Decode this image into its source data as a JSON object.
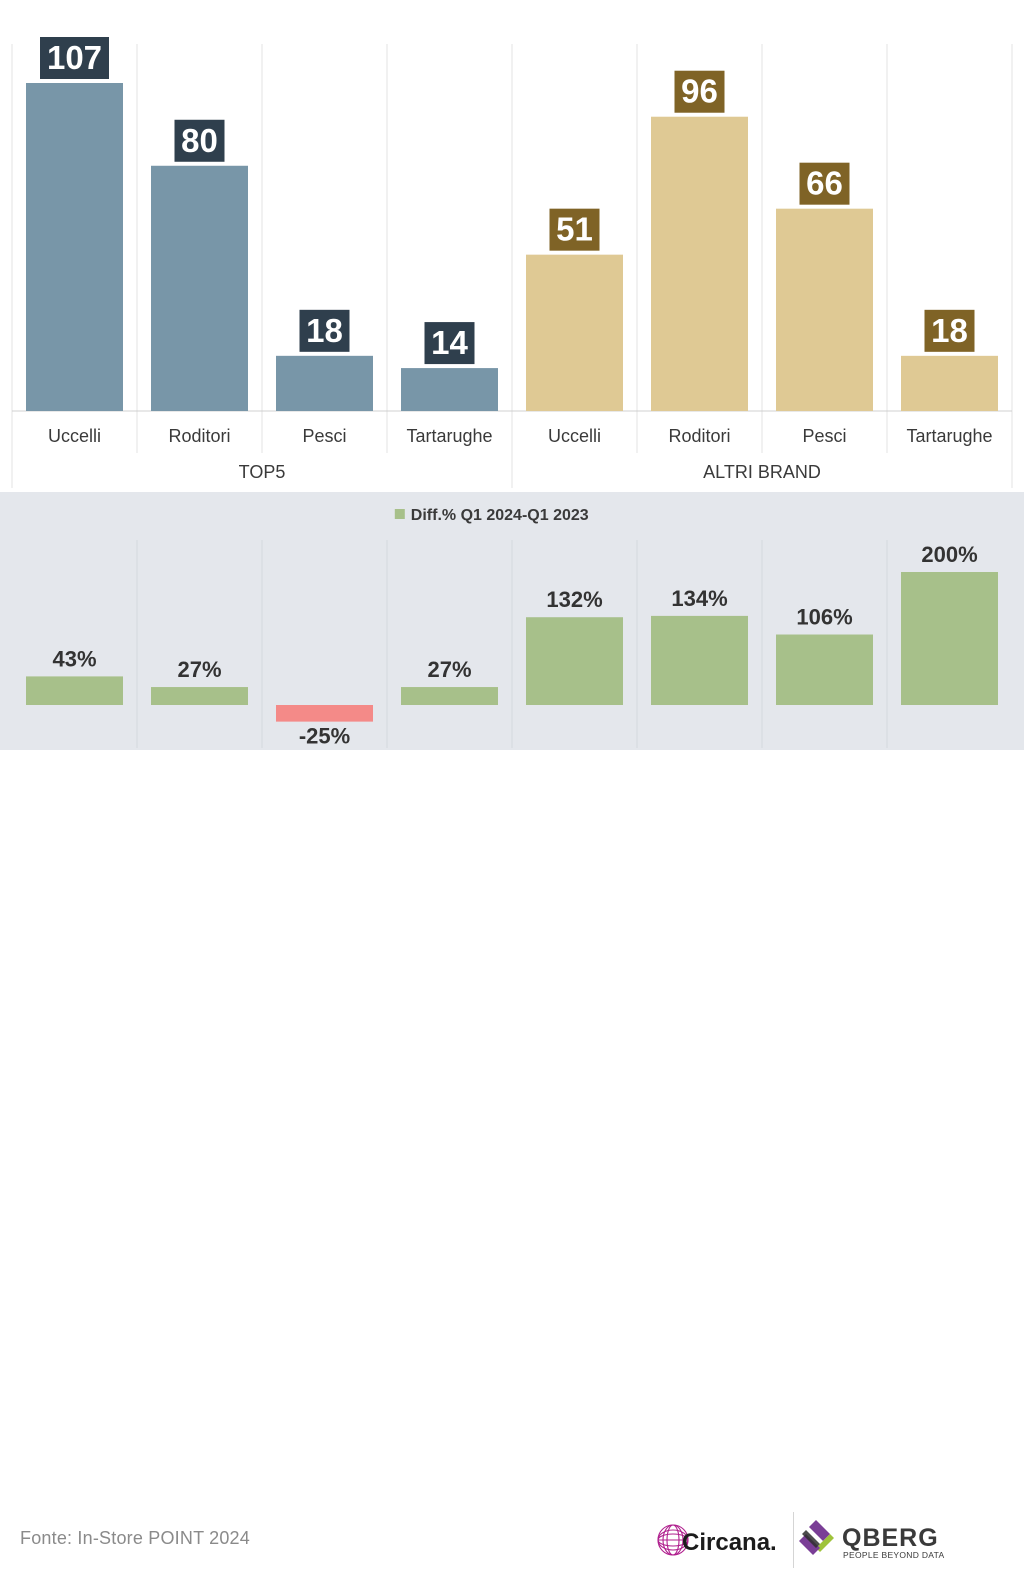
{
  "chart_data": [
    {
      "type": "bar",
      "categories": [
        "Uccelli",
        "Roditori",
        "Pesci",
        "Tartarughe",
        "Uccelli",
        "Roditori",
        "Pesci",
        "Tartarughe"
      ],
      "groups": [
        {
          "label": "TOP5",
          "indices": [
            0,
            1,
            2,
            3
          ],
          "bar_color": "#7896a8",
          "label_bg": "#2f3f4d"
        },
        {
          "label": "ALTRI BRAND",
          "indices": [
            4,
            5,
            6,
            7
          ],
          "bar_color": "#dfc994",
          "label_bg": "#7f6326"
        }
      ],
      "values": [
        107,
        80,
        18,
        14,
        51,
        96,
        66,
        18
      ],
      "ylim": [
        0,
        120
      ],
      "grid": true
    },
    {
      "type": "bar",
      "legend": "Diff.% Q1 2024-Q1 2023",
      "legend_position": "top-center",
      "categories": [
        "Uccelli",
        "Roditori",
        "Pesci",
        "Tartarughe",
        "Uccelli",
        "Roditori",
        "Pesci",
        "Tartarughe"
      ],
      "values": [
        43,
        27,
        -25,
        27,
        132,
        134,
        106,
        200
      ],
      "labels": [
        "43%",
        "27%",
        "-25%",
        "27%",
        "132%",
        "134%",
        "106%",
        "200%"
      ],
      "positive_color": "#a7c08a",
      "negative_color": "#f48a88",
      "ylim": [
        -25,
        200
      ]
    }
  ],
  "footer": {
    "source": "Fonte: In-Store POINT 2024",
    "logos": [
      "Circana.",
      "QBERG"
    ],
    "qberg_tagline": "PEOPLE BEYOND DATA",
    "circana_icon": "circana-sphere-icon",
    "qberg_icon": "qberg-diamond-icon"
  }
}
